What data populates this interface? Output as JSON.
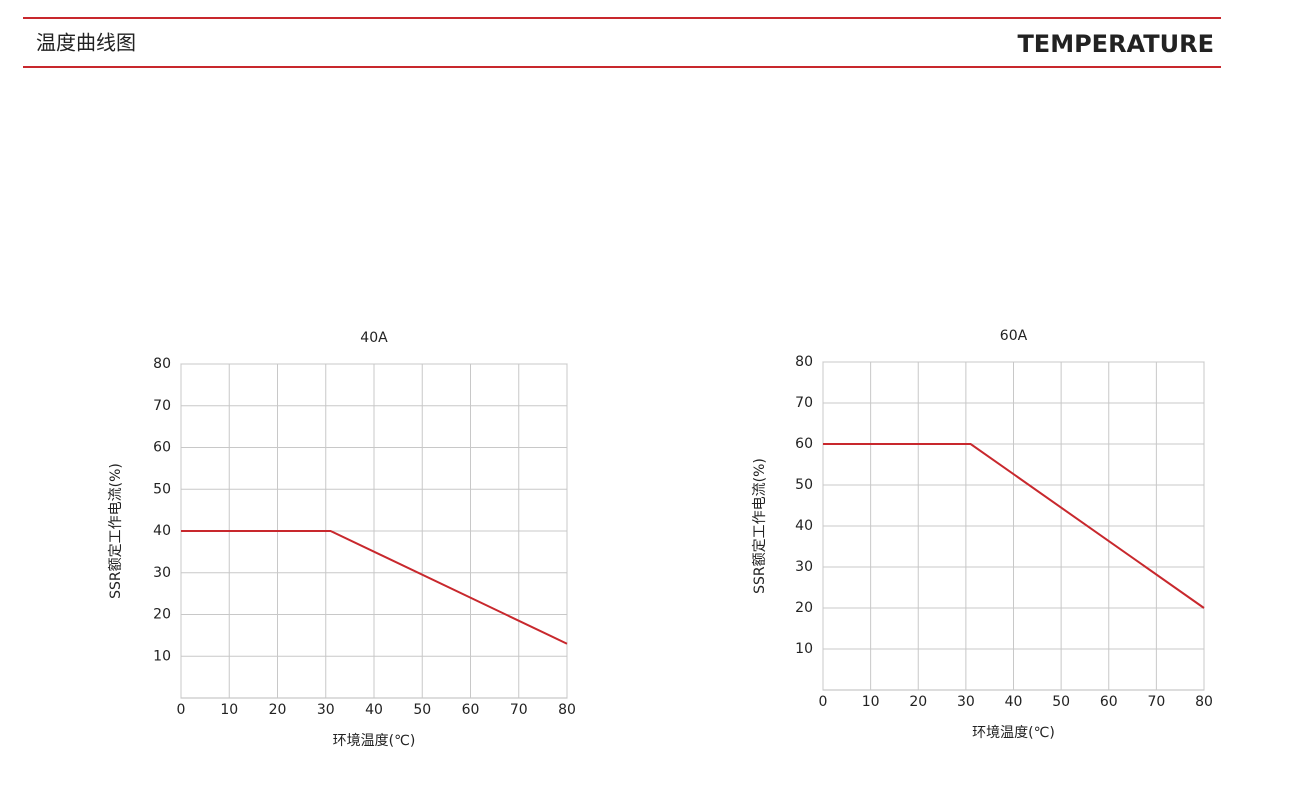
{
  "header": {
    "title": "温度曲线图",
    "title_en": "TEMPERATURE"
  },
  "chart_data": [
    {
      "type": "line",
      "title": "40A",
      "x_label": "环境温度(℃)",
      "y_label": "SSR额定工作电流(%)",
      "x": [
        0,
        31,
        80
      ],
      "values": [
        40,
        40,
        13
      ],
      "color": "#c8282d",
      "xlim": [
        0,
        80
      ],
      "xticks": [
        0,
        10,
        20,
        30,
        40,
        50,
        60,
        70,
        80
      ],
      "ylim": [
        0,
        80
      ],
      "yticks": [
        10,
        20,
        30,
        40,
        50,
        60,
        70,
        80
      ],
      "grid": true
    },
    {
      "type": "line",
      "title": "60A",
      "x_label": "环境温度(℃)",
      "y_label": "SSR额定工作电流(%)",
      "x": [
        0,
        31,
        80
      ],
      "values": [
        60,
        60,
        20
      ],
      "color": "#c8282d",
      "xlim": [
        0,
        80
      ],
      "xticks": [
        0,
        10,
        20,
        30,
        40,
        50,
        60,
        70,
        80
      ],
      "ylim": [
        0,
        80
      ],
      "yticks": [
        10,
        20,
        30,
        40,
        50,
        60,
        70,
        80
      ],
      "grid": true
    }
  ]
}
